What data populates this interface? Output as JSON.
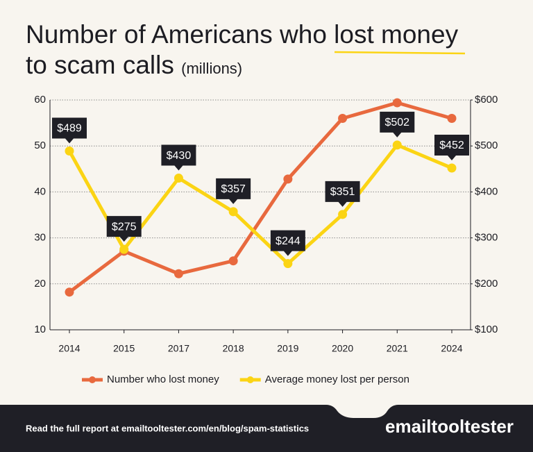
{
  "chart_data": {
    "type": "line",
    "title": "Number of Americans who lost money to scam calls",
    "subtitle": "(millions)",
    "categories": [
      "2014",
      "2015",
      "2017",
      "2018",
      "2019",
      "2020",
      "2021",
      "2024"
    ],
    "series": [
      {
        "name": "Number who lost money",
        "color": "#e8693e",
        "values": [
          18.2,
          27.1,
          22.2,
          25,
          42.8,
          56,
          59.4,
          56
        ]
      },
      {
        "name": "Average money lost per person",
        "color": "#fbd414",
        "axis": "y2",
        "values": [
          489,
          275,
          430,
          357,
          244,
          351,
          502,
          452
        ],
        "value_labels": [
          "$489",
          "$275",
          "$430",
          "$357",
          "$244",
          "$351",
          "$502",
          "$452"
        ]
      }
    ],
    "ylim": [
      10,
      60
    ],
    "yticks": [
      10,
      20,
      30,
      40,
      50,
      60
    ],
    "y2lim": [
      100,
      600
    ],
    "y2ticks": [
      {
        "value": 100,
        "label": "$100"
      },
      {
        "value": 200,
        "label": "$200"
      },
      {
        "value": 300,
        "label": "$300"
      },
      {
        "value": 400,
        "label": "$400"
      },
      {
        "value": 500,
        "label": "$500"
      },
      {
        "value": 600,
        "label": "$600"
      }
    ],
    "grid": true,
    "legend": "bottom"
  },
  "footer": {
    "text": "Read the full report at emailtooltester.com/en/blog/spam-statistics",
    "logo": "emailtooltester"
  }
}
